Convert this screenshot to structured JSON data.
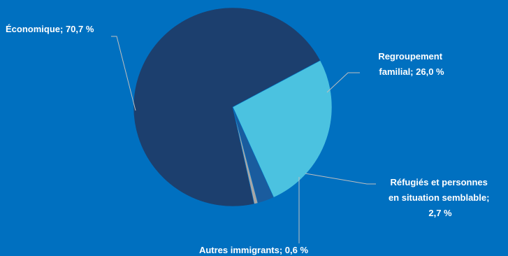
{
  "chart_data": {
    "type": "pie",
    "start_angle_deg": 62,
    "direction": "clockwise",
    "slices": [
      {
        "label_lines": [
          "Regroupement",
          "familial; 26,0 %"
        ],
        "value": 26.0,
        "color": "#4BC2E0"
      },
      {
        "label_lines": [
          "Réfugiés et personnes",
          "en situation semblable;",
          "2,7 %"
        ],
        "value": 2.7,
        "color": "#1A5C9E"
      },
      {
        "label_lines": [
          "Autres immigrants; 0,6 %"
        ],
        "value": 0.6,
        "color": "#A6A6A6"
      },
      {
        "label_lines": [
          "Économique; 70,7 %"
        ],
        "value": 70.7,
        "color": "#1C3F6E"
      }
    ],
    "leader_line_color": "#BFBFBF",
    "background_color": "#0070C0"
  }
}
